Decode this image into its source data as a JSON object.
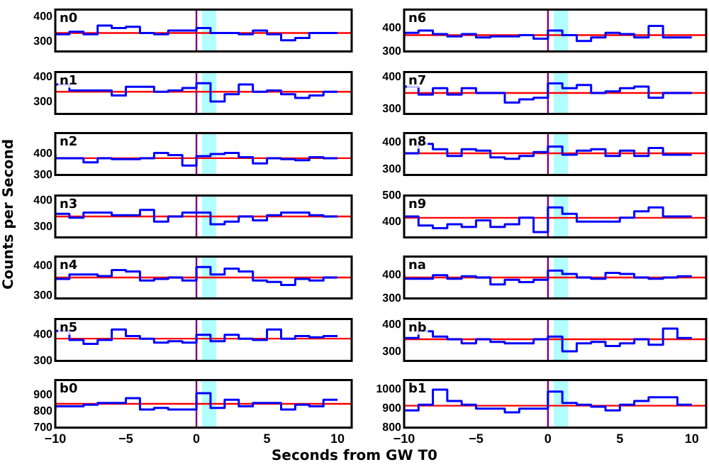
{
  "chart_data": [
    {
      "type": "step",
      "title": "n0",
      "x": [
        -10,
        -9,
        -8,
        -7,
        -6,
        -5,
        -4,
        -3,
        -2,
        -1,
        0,
        1,
        2,
        3,
        4,
        5,
        6,
        7,
        8,
        9,
        10
      ],
      "series": [
        {
          "color": "#0000ff",
          "values": [
            335,
            330,
            340,
            330,
            365,
            355,
            360,
            335,
            330,
            345,
            345,
            355,
            335,
            335,
            330,
            345,
            330,
            305,
            315,
            335,
            335
          ]
        }
      ],
      "xlim": [
        -10,
        11
      ],
      "ylim": [
        260,
        430
      ],
      "yticks": [
        300,
        400
      ],
      "tick_labels": "y",
      "legend": false,
      "grid": false,
      "ref_lines": [
        {
          "axis": "y",
          "value": 335,
          "color": "#ff0000"
        },
        {
          "axis": "x",
          "value": 0,
          "color": "#800080"
        }
      ],
      "bands": [
        {
          "axis": "x",
          "from": 0.4,
          "to": 1.4,
          "color": "#00ffff"
        }
      ]
    },
    {
      "type": "step",
      "title": "n1",
      "x": [
        -10,
        -9,
        -8,
        -7,
        -6,
        -5,
        -4,
        -3,
        -2,
        -1,
        0,
        1,
        2,
        3,
        4,
        5,
        6,
        7,
        8,
        9,
        10
      ],
      "series": [
        {
          "color": "#0000ff",
          "values": [
            370,
            370,
            345,
            345,
            345,
            325,
            360,
            360,
            340,
            345,
            355,
            375,
            300,
            330,
            370,
            340,
            345,
            330,
            315,
            325,
            340
          ]
        }
      ],
      "xlim": [
        -10,
        11
      ],
      "ylim": [
        250,
        420
      ],
      "yticks": [
        300,
        400
      ],
      "tick_labels": "y",
      "legend": false,
      "grid": false,
      "ref_lines": [
        {
          "axis": "y",
          "value": 340,
          "color": "#ff0000"
        },
        {
          "axis": "x",
          "value": 0,
          "color": "#800080"
        }
      ],
      "bands": [
        {
          "axis": "x",
          "from": 0.4,
          "to": 1.4,
          "color": "#00ffff"
        }
      ]
    },
    {
      "type": "step",
      "title": "n2",
      "x": [
        -10,
        -9,
        -8,
        -7,
        -6,
        -5,
        -4,
        -3,
        -2,
        -1,
        0,
        1,
        2,
        3,
        4,
        5,
        6,
        7,
        8,
        9,
        10
      ],
      "series": [
        {
          "color": "#0000ff",
          "values": [
            400,
            380,
            380,
            360,
            380,
            375,
            375,
            380,
            405,
            395,
            345,
            390,
            400,
            405,
            385,
            355,
            380,
            375,
            370,
            385,
            380
          ]
        }
      ],
      "xlim": [
        -10,
        11
      ],
      "ylim": [
        300,
        500
      ],
      "yticks": [
        300,
        400
      ],
      "tick_labels": "y",
      "legend": false,
      "grid": false,
      "ref_lines": [
        {
          "axis": "y",
          "value": 380,
          "color": "#ff0000"
        },
        {
          "axis": "x",
          "value": 0,
          "color": "#800080"
        }
      ],
      "bands": [
        {
          "axis": "x",
          "from": 0.4,
          "to": 1.4,
          "color": "#00ffff"
        }
      ]
    },
    {
      "type": "step",
      "title": "n3",
      "ylabel": "Counts per Second",
      "x": [
        -10,
        -9,
        -8,
        -7,
        -6,
        -5,
        -4,
        -3,
        -2,
        -1,
        0,
        1,
        2,
        3,
        4,
        5,
        6,
        7,
        8,
        9,
        10
      ],
      "series": [
        {
          "color": "#0000ff",
          "values": [
            350,
            350,
            335,
            355,
            355,
            345,
            345,
            365,
            320,
            340,
            355,
            355,
            310,
            320,
            340,
            325,
            345,
            355,
            355,
            345,
            340
          ]
        }
      ],
      "xlim": [
        -10,
        11
      ],
      "ylim": [
        260,
        420
      ],
      "yticks": [
        300,
        400
      ],
      "tick_labels": "y",
      "legend": false,
      "grid": false,
      "ref_lines": [
        {
          "axis": "y",
          "value": 340,
          "color": "#ff0000"
        },
        {
          "axis": "x",
          "value": 0,
          "color": "#800080"
        }
      ],
      "bands": [
        {
          "axis": "x",
          "from": 0.4,
          "to": 1.4,
          "color": "#00ffff"
        }
      ]
    },
    {
      "type": "step",
      "title": "n4",
      "x": [
        -10,
        -9,
        -8,
        -7,
        -6,
        -5,
        -4,
        -3,
        -2,
        -1,
        0,
        1,
        2,
        3,
        4,
        5,
        6,
        7,
        8,
        9,
        10
      ],
      "series": [
        {
          "color": "#0000ff",
          "values": [
            360,
            355,
            370,
            370,
            365,
            385,
            380,
            350,
            355,
            360,
            350,
            395,
            370,
            390,
            380,
            350,
            345,
            335,
            355,
            350,
            360
          ]
        }
      ],
      "xlim": [
        -10,
        11
      ],
      "ylim": [
        290,
        430
      ],
      "yticks": [
        300,
        400
      ],
      "tick_labels": "y",
      "legend": false,
      "grid": false,
      "ref_lines": [
        {
          "axis": "y",
          "value": 360,
          "color": "#ff0000"
        },
        {
          "axis": "x",
          "value": 0,
          "color": "#800080"
        }
      ],
      "bands": [
        {
          "axis": "x",
          "from": 0.4,
          "to": 1.4,
          "color": "#00ffff"
        }
      ]
    },
    {
      "type": "step",
      "title": "n5",
      "x": [
        -10,
        -9,
        -8,
        -7,
        -6,
        -5,
        -4,
        -3,
        -2,
        -1,
        0,
        1,
        2,
        3,
        4,
        5,
        6,
        7,
        8,
        9,
        10
      ],
      "series": [
        {
          "color": "#0000ff",
          "values": [
            410,
            415,
            380,
            365,
            380,
            420,
            395,
            385,
            370,
            375,
            370,
            400,
            375,
            400,
            385,
            380,
            420,
            385,
            395,
            390,
            395
          ]
        }
      ],
      "xlim": [
        -10,
        11
      ],
      "ylim": [
        300,
        460
      ],
      "yticks": [
        300,
        400
      ],
      "tick_labels": "y",
      "legend": false,
      "grid": false,
      "ref_lines": [
        {
          "axis": "y",
          "value": 385,
          "color": "#ff0000"
        },
        {
          "axis": "x",
          "value": 0,
          "color": "#800080"
        }
      ],
      "bands": [
        {
          "axis": "x",
          "from": 0.4,
          "to": 1.4,
          "color": "#00ffff"
        }
      ]
    },
    {
      "type": "step",
      "title": "b0",
      "xlabel": "Seconds from GW T0",
      "x": [
        -10,
        -9,
        -8,
        -7,
        -6,
        -5,
        -4,
        -3,
        -2,
        -1,
        0,
        1,
        2,
        3,
        4,
        5,
        6,
        7,
        8,
        9,
        10
      ],
      "series": [
        {
          "color": "#0000ff",
          "values": [
            810,
            830,
            830,
            840,
            850,
            850,
            880,
            810,
            820,
            810,
            810,
            910,
            820,
            870,
            830,
            850,
            850,
            810,
            840,
            830,
            870
          ]
        }
      ],
      "xlim": [
        -10,
        11
      ],
      "xticks": [
        -10,
        -5,
        0,
        5,
        10
      ],
      "ylim": [
        700,
        990
      ],
      "yticks": [
        700,
        800,
        900
      ],
      "legend": false,
      "grid": false,
      "ref_lines": [
        {
          "axis": "y",
          "value": 845,
          "color": "#ff0000"
        },
        {
          "axis": "x",
          "value": 0,
          "color": "#800080"
        }
      ],
      "bands": [
        {
          "axis": "x",
          "from": 0.4,
          "to": 1.4,
          "color": "#00ffff"
        }
      ]
    },
    {
      "type": "step",
      "title": "n6",
      "x": [
        -10,
        -9,
        -8,
        -7,
        -6,
        -5,
        -4,
        -3,
        -2,
        -1,
        0,
        1,
        2,
        3,
        4,
        5,
        6,
        7,
        8,
        9,
        10
      ],
      "series": [
        {
          "color": "#0000ff",
          "values": [
            360,
            380,
            390,
            375,
            365,
            375,
            360,
            365,
            365,
            370,
            355,
            390,
            370,
            345,
            360,
            380,
            375,
            360,
            410,
            360,
            360
          ]
        }
      ],
      "xlim": [
        -10,
        11
      ],
      "ylim": [
        300,
        480
      ],
      "yticks": [
        300,
        400
      ],
      "tick_labels": "y",
      "legend": false,
      "grid": false,
      "ref_lines": [
        {
          "axis": "y",
          "value": 370,
          "color": "#ff0000"
        },
        {
          "axis": "x",
          "value": 0,
          "color": "#800080"
        }
      ],
      "bands": [
        {
          "axis": "x",
          "from": 0.4,
          "to": 1.4,
          "color": "#00ffff"
        }
      ]
    },
    {
      "type": "step",
      "title": "n7",
      "x": [
        -10,
        -9,
        -8,
        -7,
        -6,
        -5,
        -4,
        -3,
        -2,
        -1,
        0,
        1,
        2,
        3,
        4,
        5,
        6,
        7,
        8,
        9,
        10
      ],
      "series": [
        {
          "color": "#0000ff",
          "values": [
            360,
            370,
            345,
            365,
            345,
            365,
            350,
            350,
            320,
            330,
            335,
            380,
            365,
            375,
            350,
            355,
            365,
            370,
            335,
            350,
            350
          ]
        }
      ],
      "xlim": [
        -10,
        11
      ],
      "ylim": [
        285,
        415
      ],
      "yticks": [
        300,
        400
      ],
      "tick_labels": "y",
      "legend": false,
      "grid": false,
      "ref_lines": [
        {
          "axis": "y",
          "value": 350,
          "color": "#ff0000"
        },
        {
          "axis": "x",
          "value": 0,
          "color": "#800080"
        }
      ],
      "bands": [
        {
          "axis": "x",
          "from": 0.4,
          "to": 1.4,
          "color": "#00ffff"
        }
      ]
    },
    {
      "type": "step",
      "title": "n8",
      "x": [
        -10,
        -9,
        -8,
        -7,
        -6,
        -5,
        -4,
        -3,
        -2,
        -1,
        0,
        1,
        2,
        3,
        4,
        5,
        6,
        7,
        8,
        9,
        10
      ],
      "series": [
        {
          "color": "#0000ff",
          "values": [
            365,
            360,
            395,
            375,
            350,
            375,
            370,
            345,
            340,
            350,
            365,
            385,
            355,
            370,
            375,
            350,
            370,
            350,
            380,
            355,
            355
          ]
        }
      ],
      "xlim": [
        -10,
        11
      ],
      "ylim": [
        280,
        435
      ],
      "yticks": [
        300,
        400
      ],
      "tick_labels": "y",
      "legend": false,
      "grid": false,
      "ref_lines": [
        {
          "axis": "y",
          "value": 360,
          "color": "#ff0000"
        },
        {
          "axis": "x",
          "value": 0,
          "color": "#800080"
        }
      ],
      "bands": [
        {
          "axis": "x",
          "from": 0.4,
          "to": 1.4,
          "color": "#00ffff"
        }
      ]
    },
    {
      "type": "step",
      "title": "n9",
      "x": [
        -10,
        -9,
        -8,
        -7,
        -6,
        -5,
        -4,
        -3,
        -2,
        -1,
        0,
        1,
        2,
        3,
        4,
        5,
        6,
        7,
        8,
        9,
        10
      ],
      "series": [
        {
          "color": "#0000ff",
          "values": [
            425,
            420,
            385,
            375,
            390,
            380,
            405,
            380,
            390,
            415,
            360,
            455,
            430,
            400,
            400,
            400,
            415,
            440,
            455,
            420,
            420
          ]
        }
      ],
      "xlim": [
        -10,
        11
      ],
      "ylim": [
        340,
        500
      ],
      "yticks": [
        400,
        500
      ],
      "tick_labels": "y",
      "legend": false,
      "grid": false,
      "ref_lines": [
        {
          "axis": "y",
          "value": 415,
          "color": "#ff0000"
        },
        {
          "axis": "x",
          "value": 0,
          "color": "#800080"
        }
      ],
      "bands": [
        {
          "axis": "x",
          "from": 0.4,
          "to": 1.4,
          "color": "#00ffff"
        }
      ]
    },
    {
      "type": "step",
      "title": "na",
      "x": [
        -10,
        -9,
        -8,
        -7,
        -6,
        -5,
        -4,
        -3,
        -2,
        -1,
        0,
        1,
        2,
        3,
        4,
        5,
        6,
        7,
        8,
        9,
        10
      ],
      "series": [
        {
          "color": "#0000ff",
          "values": [
            405,
            385,
            385,
            400,
            385,
            395,
            390,
            360,
            380,
            370,
            380,
            420,
            405,
            390,
            385,
            410,
            405,
            390,
            385,
            390,
            395
          ]
        }
      ],
      "xlim": [
        -10,
        11
      ],
      "ylim": [
        300,
        480
      ],
      "yticks": [
        300,
        400
      ],
      "tick_labels": "y",
      "legend": false,
      "grid": false,
      "ref_lines": [
        {
          "axis": "y",
          "value": 390,
          "color": "#ff0000"
        },
        {
          "axis": "x",
          "value": 0,
          "color": "#800080"
        }
      ],
      "bands": [
        {
          "axis": "x",
          "from": 0.4,
          "to": 1.4,
          "color": "#00ffff"
        }
      ]
    },
    {
      "type": "step",
      "title": "nb",
      "x": [
        -10,
        -9,
        -8,
        -7,
        -6,
        -5,
        -4,
        -3,
        -2,
        -1,
        0,
        1,
        2,
        3,
        4,
        5,
        6,
        7,
        8,
        9,
        10
      ],
      "series": [
        {
          "color": "#0000ff",
          "values": [
            340,
            350,
            375,
            355,
            345,
            330,
            345,
            335,
            330,
            330,
            345,
            355,
            300,
            330,
            335,
            320,
            330,
            345,
            325,
            385,
            350
          ]
        }
      ],
      "xlim": [
        -10,
        11
      ],
      "ylim": [
        265,
        420
      ],
      "yticks": [
        300,
        400
      ],
      "tick_labels": "y",
      "legend": false,
      "grid": false,
      "ref_lines": [
        {
          "axis": "y",
          "value": 345,
          "color": "#ff0000"
        },
        {
          "axis": "x",
          "value": 0,
          "color": "#800080"
        }
      ],
      "bands": [
        {
          "axis": "x",
          "from": 0.4,
          "to": 1.4,
          "color": "#00ffff"
        }
      ]
    },
    {
      "type": "step",
      "title": "b1",
      "x": [
        -10,
        -9,
        -8,
        -7,
        -6,
        -5,
        -4,
        -3,
        -2,
        -1,
        0,
        1,
        2,
        3,
        4,
        5,
        6,
        7,
        8,
        9,
        10
      ],
      "series": [
        {
          "color": "#0000ff",
          "values": [
            890,
            890,
            920,
            1000,
            940,
            920,
            900,
            900,
            880,
            900,
            900,
            990,
            930,
            920,
            910,
            890,
            920,
            940,
            960,
            960,
            920
          ]
        }
      ],
      "xlim": [
        -10,
        11
      ],
      "xticks": [
        -10,
        -5,
        0,
        5,
        10
      ],
      "ylim": [
        800,
        1050
      ],
      "yticks": [
        800,
        900,
        1000
      ],
      "legend": false,
      "grid": false,
      "ref_lines": [
        {
          "axis": "y",
          "value": 915,
          "color": "#ff0000"
        },
        {
          "axis": "x",
          "value": 0,
          "color": "#800080"
        }
      ],
      "bands": [
        {
          "axis": "x",
          "from": 0.4,
          "to": 1.4,
          "color": "#00ffff"
        }
      ]
    }
  ]
}
